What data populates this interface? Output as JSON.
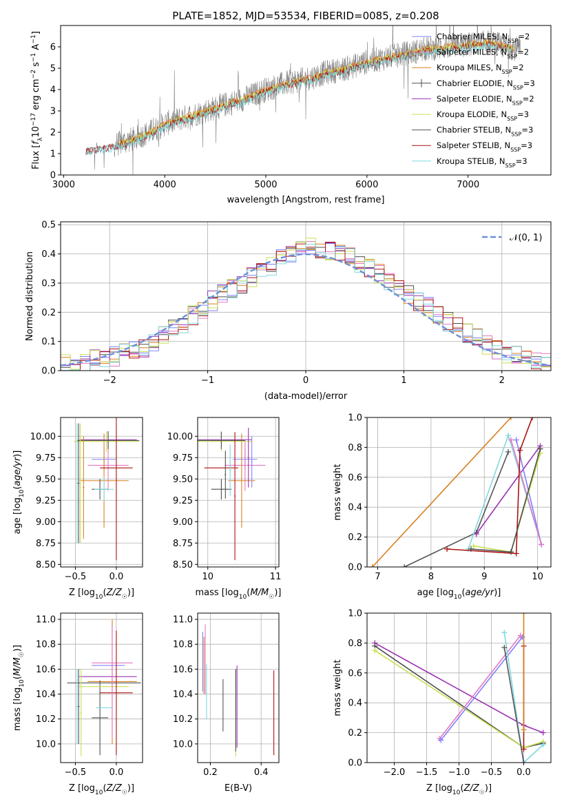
{
  "figure_title": "PLATE=1852, MJD=53534, FIBERID=0085, z=0.208",
  "colors": {
    "Chabrier MILES": "#7f7fff",
    "Salpeter MILES": "#e377c2",
    "Kroupa MILES": "#d97f1f",
    "Chabrier ELODIE": "#4d4d4d",
    "Salpeter ELODIE": "#9b30b0",
    "Kroupa ELODIE": "#c6e050",
    "Chabrier STELIB": "#555555",
    "Salpeter STELIB": "#aa1111",
    "Kroupa STELIB": "#7fd8df",
    "data": "#808080",
    "normal": "#6a8fdc"
  },
  "chart_data": [
    {
      "id": "spectrum",
      "type": "line",
      "title": "PLATE=1852, MJD=53534, FIBERID=0085, z=0.208",
      "xlabel": "wavelength [Angstrom, rest frame]",
      "ylabel": "Flux [f_λ 10^-17 erg cm^-2 s^-1 A^-1]",
      "xlim": [
        2970,
        7820
      ],
      "ylim": [
        0,
        7
      ],
      "xticks": [
        3000,
        4000,
        5000,
        6000,
        7000
      ],
      "yticks": [
        0,
        1,
        2,
        3,
        4,
        5,
        6
      ],
      "legend": "upper-right",
      "data_trend": {
        "x": [
          3220,
          3500,
          3700,
          3900,
          4000,
          4200,
          4400,
          4600,
          4800,
          5000,
          5200,
          5400,
          5600,
          5800,
          6000,
          6200,
          6400,
          6600,
          6800,
          7000,
          7200,
          7400,
          7500
        ],
        "y": [
          1.2,
          1.4,
          1.7,
          2.1,
          2.4,
          2.7,
          3.0,
          3.3,
          3.6,
          4.0,
          4.3,
          4.5,
          4.8,
          5.0,
          5.3,
          5.5,
          5.7,
          5.9,
          6.0,
          6.1,
          6.2,
          6.0,
          5.9
        ]
      },
      "series": [
        {
          "name": "Chabrier MILES",
          "label": "Chabrier MILES, N",
          "sub": "SSP",
          "suffix": "=2"
        },
        {
          "name": "Salpeter MILES",
          "label": "Salpeter MILES, N",
          "sub": "SSP",
          "suffix": "=2"
        },
        {
          "name": "Kroupa MILES",
          "label": "Kroupa MILES, N",
          "sub": "SSP",
          "suffix": "=2"
        },
        {
          "name": "Chabrier ELODIE",
          "label": "Chabrier ELODIE, N",
          "sub": "SSP",
          "suffix": "=3"
        },
        {
          "name": "Salpeter ELODIE",
          "label": "Salpeter ELODIE, N",
          "sub": "SSP",
          "suffix": "=2"
        },
        {
          "name": "Kroupa ELODIE",
          "label": "Kroupa ELODIE, N",
          "sub": "SSP",
          "suffix": "=3"
        },
        {
          "name": "Chabrier STELIB",
          "label": "Chabrier STELIB, N",
          "sub": "SSP",
          "suffix": "=3"
        },
        {
          "name": "Salpeter STELIB",
          "label": "Salpeter STELIB, N",
          "sub": "SSP",
          "suffix": "=3"
        },
        {
          "name": "Kroupa STELIB",
          "label": "Kroupa STELIB, N",
          "sub": "SSP",
          "suffix": "=3"
        }
      ]
    },
    {
      "id": "residuals",
      "type": "histogram",
      "xlabel": "(data-model)/error",
      "ylabel": "Normed distribution",
      "xlim": [
        -2.5,
        2.5
      ],
      "ylim": [
        0,
        0.51
      ],
      "xticks": [
        -2,
        -1,
        0,
        1,
        2
      ],
      "yticks": [
        0.0,
        0.1,
        0.2,
        0.3,
        0.4,
        0.5
      ],
      "grid": true,
      "legend": "upper-right",
      "legend_label": "𝒩(0, 1)",
      "bin_width": 0.1,
      "hist_start": -2.5,
      "hist_series": [
        "Chabrier MILES",
        "Salpeter MILES",
        "Kroupa MILES",
        "Chabrier ELODIE",
        "Salpeter ELODIE",
        "Kroupa ELODIE",
        "Salpeter STELIB",
        "Kroupa STELIB"
      ],
      "hist_base": [
        0.02,
        0.03,
        0.03,
        0.04,
        0.04,
        0.05,
        0.06,
        0.07,
        0.08,
        0.1,
        0.12,
        0.14,
        0.16,
        0.19,
        0.21,
        0.24,
        0.26,
        0.28,
        0.3,
        0.32,
        0.34,
        0.36,
        0.38,
        0.4,
        0.42,
        0.42,
        0.42,
        0.41,
        0.4,
        0.39,
        0.37,
        0.35,
        0.33,
        0.31,
        0.28,
        0.26,
        0.24,
        0.22,
        0.19,
        0.17,
        0.15,
        0.13,
        0.11,
        0.09,
        0.07,
        0.06,
        0.05,
        0.04,
        0.03,
        0.03
      ]
    },
    {
      "id": "age-vs-z",
      "type": "errorbar",
      "xlabel": "Z [log10(Z/Z☉)]",
      "ylabel": "age [log10(age/yr)]",
      "xlim": [
        -0.68,
        0.32
      ],
      "ylim": [
        8.47,
        10.22
      ],
      "xticks": [
        -0.5,
        0.0
      ],
      "yticks": [
        8.5,
        8.75,
        9.0,
        9.25,
        9.5,
        9.75,
        10.0
      ],
      "grid": true,
      "points": [
        {
          "series": "Chabrier MILES",
          "x": -0.15,
          "xerr": 0.15,
          "y": 9.73,
          "yerr": 0.12
        },
        {
          "series": "Salpeter MILES",
          "x": -0.1,
          "xerr": 0.25,
          "y": 9.66,
          "yerr": 0.3
        },
        {
          "series": "Kroupa MILES",
          "x": -0.15,
          "xerr": 0.3,
          "y": 9.48,
          "yerr": 0.55
        },
        {
          "series": "Chabrier ELODIE",
          "x": -0.2,
          "xerr": 0.1,
          "y": 9.38,
          "yerr": 0.12
        },
        {
          "series": "Salpeter ELODIE",
          "x": -0.1,
          "xerr": 0.35,
          "y": 9.96,
          "yerr": 0.1
        },
        {
          "series": "Kroupa ELODIE",
          "x": -0.12,
          "xerr": 0.4,
          "y": 9.94,
          "yerr": 0.12
        },
        {
          "series": "Chabrier STELIB",
          "x": -0.1,
          "xerr": 0.38,
          "y": 9.95,
          "yerr": 0.1
        },
        {
          "series": "Salpeter STELIB",
          "x": 0.0,
          "xerr": 0.2,
          "y": 9.63,
          "yerr": 1.08
        },
        {
          "series": "Kroupa STELIB",
          "x": -0.15,
          "xerr": 0.12,
          "y": 9.38,
          "yerr": 0.14
        },
        {
          "series": "Kroupa STELIB",
          "x": -0.48,
          "xerr": 0.01,
          "y": 9.45,
          "yerr": 0.7
        },
        {
          "series": "Chabrier ELODIE",
          "x": -0.46,
          "xerr": 0.01,
          "y": 9.45,
          "yerr": 0.7
        },
        {
          "series": "Kroupa ELODIE",
          "x": -0.44,
          "xerr": 0.01,
          "y": 9.45,
          "yerr": 0.7
        },
        {
          "series": "Kroupa MILES",
          "x": -0.4,
          "xerr": 0.01,
          "y": 9.4,
          "yerr": 0.6
        }
      ]
    },
    {
      "id": "age-vs-mass",
      "type": "errorbar",
      "xlabel": "mass [log10(M/M☉)]",
      "ylabel": "",
      "xlim": [
        9.85,
        11.05
      ],
      "ylim": [
        8.47,
        10.22
      ],
      "xticks": [
        10,
        11
      ],
      "yticks": [
        8.5,
        8.75,
        9.0,
        9.25,
        9.5,
        9.75,
        10.0
      ],
      "grid": true,
      "points": [
        {
          "series": "Chabrier MILES",
          "x": 10.55,
          "xerr": 0.18,
          "y": 9.73,
          "yerr": 0.12
        },
        {
          "series": "Salpeter MILES",
          "x": 10.55,
          "xerr": 0.3,
          "y": 9.66,
          "yerr": 0.3
        },
        {
          "series": "Kroupa MILES",
          "x": 10.5,
          "xerr": 0.2,
          "y": 9.48,
          "yerr": 0.55
        },
        {
          "series": "Chabrier ELODIE",
          "x": 10.2,
          "xerr": 0.15,
          "y": 9.38,
          "yerr": 0.12
        },
        {
          "series": "Salpeter ELODIE",
          "x": 10.2,
          "xerr": 0.45,
          "y": 9.96,
          "yerr": 0.1
        },
        {
          "series": "Kroupa ELODIE",
          "x": 10.2,
          "xerr": 0.45,
          "y": 9.94,
          "yerr": 0.12
        },
        {
          "series": "Chabrier STELIB",
          "x": 10.2,
          "xerr": 0.35,
          "y": 9.95,
          "yerr": 0.1
        },
        {
          "series": "Salpeter STELIB",
          "x": 10.2,
          "xerr": 0.25,
          "y": 9.63,
          "yerr": 0.0
        },
        {
          "series": "Salpeter STELIB",
          "x": 10.4,
          "xerr": 0.01,
          "y": 9.3,
          "yerr": 0.75
        },
        {
          "series": "Chabrier ELODIE",
          "x": 10.26,
          "xerr": 0.01,
          "y": 9.55,
          "yerr": 0.28
        },
        {
          "series": "Kroupa STELIB",
          "x": 10.33,
          "xerr": 0.01,
          "y": 9.6,
          "yerr": 0.3
        },
        {
          "series": "Salpeter ELODIE",
          "x": 10.6,
          "xerr": 0.01,
          "y": 9.75,
          "yerr": 0.35
        },
        {
          "series": "Chabrier MILES",
          "x": 10.65,
          "xerr": 0.01,
          "y": 9.7,
          "yerr": 0.3
        }
      ]
    },
    {
      "id": "weight-vs-age",
      "type": "line",
      "xlabel": "age [log10(age/yr)]",
      "ylabel": "mass weight",
      "xlim": [
        6.8,
        10.25
      ],
      "ylim": [
        0,
        1
      ],
      "xticks": [
        7,
        8,
        9,
        10
      ],
      "yticks": [
        0.0,
        0.2,
        0.4,
        0.6,
        0.8,
        1.0
      ],
      "grid": true,
      "lines": [
        {
          "series": "Kroupa MILES",
          "x": [
            6.9,
            9.5
          ],
          "y": [
            0.0,
            1.0
          ]
        },
        {
          "series": "Chabrier STELIB",
          "x": [
            7.5,
            8.85,
            9.45
          ],
          "y": [
            0.0,
            0.23,
            0.77
          ]
        },
        {
          "series": "Salpeter ELODIE",
          "x": [
            8.85,
            10.05
          ],
          "y": [
            0.22,
            0.81
          ]
        },
        {
          "series": "Kroupa STELIB",
          "x": [
            8.7,
            9.45,
            10.07
          ],
          "y": [
            0.12,
            0.88,
            0.15
          ]
        },
        {
          "series": "Chabrier MILES",
          "x": [
            9.6,
            10.07
          ],
          "y": [
            0.85,
            0.15
          ]
        },
        {
          "series": "Salpeter MILES",
          "x": [
            9.5,
            10.07
          ],
          "y": [
            0.85,
            0.15
          ]
        },
        {
          "series": "Kroupa ELODIE",
          "x": [
            8.8,
            9.5,
            10.05
          ],
          "y": [
            0.14,
            0.1,
            0.76
          ]
        },
        {
          "series": "Salpeter STELIB",
          "x": [
            8.3,
            9.6,
            9.67,
            9.9
          ],
          "y": [
            0.12,
            0.09,
            0.78,
            1.0
          ]
        },
        {
          "series": "Chabrier ELODIE",
          "x": [
            8.75,
            9.5,
            10.05
          ],
          "y": [
            0.12,
            0.1,
            0.79
          ]
        }
      ]
    },
    {
      "id": "mass-vs-z",
      "type": "errorbar",
      "xlabel": "Z [log10(Z/Z☉)]",
      "ylabel": "mass [log10(M/M☉)]",
      "xlim": [
        -0.68,
        0.32
      ],
      "ylim": [
        9.85,
        11.05
      ],
      "xticks": [
        -0.5,
        0.0
      ],
      "yticks": [
        10.0,
        10.2,
        10.4,
        10.6,
        10.8,
        11.0
      ],
      "grid": true,
      "points": [
        {
          "series": "Chabrier MILES",
          "x": -0.1,
          "xerr": 0.2,
          "y": 10.63,
          "yerr": 0.0
        },
        {
          "series": "Salpeter MILES",
          "x": -0.05,
          "xerr": 0.25,
          "y": 10.65,
          "yerr": 0.3
        },
        {
          "series": "Kroupa MILES",
          "x": -0.05,
          "xerr": 0.3,
          "y": 10.5,
          "yerr": 0.5
        },
        {
          "series": "Chabrier ELODIE",
          "x": -0.2,
          "xerr": 0.1,
          "y": 10.21,
          "yerr": 0.3
        },
        {
          "series": "Salpeter ELODIE",
          "x": -0.1,
          "xerr": 0.35,
          "y": 10.54,
          "yerr": 0.0
        },
        {
          "series": "Kroupa ELODIE",
          "x": -0.15,
          "xerr": 0.3,
          "y": 10.46,
          "yerr": 0.0
        },
        {
          "series": "Chabrier STELIB",
          "x": -0.15,
          "xerr": 0.45,
          "y": 10.49,
          "yerr": 0.0
        },
        {
          "series": "Salpeter STELIB",
          "x": 0.0,
          "xerr": 0.2,
          "y": 10.41,
          "yerr": 0.5
        },
        {
          "series": "Kroupa STELIB",
          "x": -0.15,
          "xerr": 0.1,
          "y": 10.29,
          "yerr": 0.0
        },
        {
          "series": "Kroupa STELIB",
          "x": -0.48,
          "xerr": 0.01,
          "y": 10.3,
          "yerr": 0.3
        },
        {
          "series": "Chabrier ELODIE",
          "x": -0.46,
          "xerr": 0.01,
          "y": 10.3,
          "yerr": 0.3
        },
        {
          "series": "Kroupa ELODIE",
          "x": -0.43,
          "xerr": 0.01,
          "y": 10.25,
          "yerr": 0.35
        },
        {
          "series": "Salpeter MILES",
          "x": -0.05,
          "xerr": 0.01,
          "y": 10.5,
          "yerr": 0.45
        }
      ]
    },
    {
      "id": "mass-vs-ebv",
      "type": "errorbar",
      "xlabel": "E(B-V)",
      "ylabel": "",
      "xlim": [
        0.15,
        0.47
      ],
      "ylim": [
        9.85,
        11.05
      ],
      "xticks": [
        0.2,
        0.4
      ],
      "yticks": [
        10.0,
        10.2,
        10.4,
        10.6,
        10.8,
        11.0
      ],
      "grid": true,
      "points": [
        {
          "series": "Chabrier MILES",
          "x": 0.17,
          "xerr": 0.0,
          "y": 10.66,
          "yerr": 0.24
        },
        {
          "series": "Salpeter MILES",
          "x": 0.18,
          "xerr": 0.0,
          "y": 10.68,
          "yerr": 0.28
        },
        {
          "series": "Kroupa MILES",
          "x": 0.175,
          "xerr": 0.0,
          "y": 10.63,
          "yerr": 0.23
        },
        {
          "series": "Kroupa STELIB",
          "x": 0.185,
          "xerr": 0.0,
          "y": 10.42,
          "yerr": 0.22
        },
        {
          "series": "Chabrier STELIB",
          "x": 0.25,
          "xerr": 0.0,
          "y": 10.31,
          "yerr": 0.21
        },
        {
          "series": "Kroupa ELODIE",
          "x": 0.3,
          "xerr": 0.0,
          "y": 10.25,
          "yerr": 0.35
        },
        {
          "series": "Salpeter ELODIE",
          "x": 0.305,
          "xerr": 0.0,
          "y": 10.3,
          "yerr": 0.33
        },
        {
          "series": "Chabrier ELODIE",
          "x": 0.3,
          "xerr": 0.0,
          "y": 10.27,
          "yerr": 0.33
        },
        {
          "series": "Salpeter STELIB",
          "x": 0.45,
          "xerr": 0.0,
          "y": 10.25,
          "yerr": 0.34
        }
      ]
    },
    {
      "id": "weight-vs-z",
      "type": "line",
      "xlabel": "Z [log10(Z/Z☉)]",
      "ylabel": "mass weight",
      "xlim": [
        -2.42,
        0.42
      ],
      "ylim": [
        0,
        1
      ],
      "xticks": [
        -2.0,
        -1.5,
        -1.0,
        -0.5,
        0.0
      ],
      "yticks": [
        0.0,
        0.2,
        0.4,
        0.6,
        0.8,
        1.0
      ],
      "grid": true,
      "lines": [
        {
          "series": "Salpeter ELODIE",
          "x": [
            -2.3,
            0.0,
            0.3
          ],
          "y": [
            0.8,
            0.25,
            0.2
          ]
        },
        {
          "series": "Chabrier ELODIE",
          "x": [
            -2.3,
            0.0,
            0.3
          ],
          "y": [
            0.78,
            0.1,
            0.13
          ]
        },
        {
          "series": "Kroupa ELODIE",
          "x": [
            -2.3,
            0.0,
            0.3
          ],
          "y": [
            0.75,
            0.1,
            0.14
          ]
        },
        {
          "series": "Salpeter MILES",
          "x": [
            -1.3,
            -0.05
          ],
          "y": [
            0.16,
            0.85
          ]
        },
        {
          "series": "Chabrier MILES",
          "x": [
            -1.28,
            -0.02
          ],
          "y": [
            0.15,
            0.84
          ]
        },
        {
          "series": "Kroupa STELIB",
          "x": [
            -0.3,
            0.0,
            0.3
          ],
          "y": [
            0.87,
            0.0,
            0.12
          ]
        },
        {
          "series": "Chabrier STELIB",
          "x": [
            -0.3,
            0.0
          ],
          "y": [
            0.77,
            0.0
          ]
        },
        {
          "series": "Salpeter STELIB",
          "x": [
            0.0,
            0.0
          ],
          "y": [
            0.09,
            0.78
          ]
        },
        {
          "series": "Kroupa MILES",
          "x": [
            0.0,
            0.0
          ],
          "y": [
            0.22,
            1.0
          ]
        }
      ]
    }
  ]
}
